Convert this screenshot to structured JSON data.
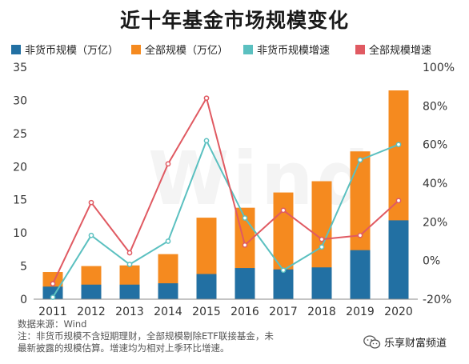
{
  "title": "近十年基金市场规模变化",
  "watermark": "Wind",
  "legend": [
    {
      "label": "非货币规模（万亿）",
      "color": "#2270a3"
    },
    {
      "label": "全部规模（万亿）",
      "color": "#f58a1f"
    },
    {
      "label": "非货币规模增速",
      "color": "#5bc0c0"
    },
    {
      "label": "全部规模增速",
      "color": "#e05a62"
    }
  ],
  "chart_data": {
    "type": "bar",
    "categories": [
      "2011",
      "2012",
      "2013",
      "2014",
      "2015",
      "2016",
      "2017",
      "2018",
      "2019",
      "2020"
    ],
    "series": [
      {
        "name": "非货币规模（万亿）",
        "kind": "bar",
        "axis": "left",
        "color": "#2270a3",
        "values": [
          1.9,
          2.2,
          2.2,
          2.4,
          3.8,
          4.7,
          4.5,
          4.8,
          7.4,
          11.9
        ]
      },
      {
        "name": "全部规模（万亿）",
        "kind": "bar",
        "axis": "left",
        "color": "#f58a1f",
        "values": [
          4.1,
          5.0,
          5.1,
          6.8,
          12.3,
          13.8,
          16.1,
          17.8,
          22.3,
          31.5
        ]
      },
      {
        "name": "非货币规模增速",
        "kind": "line",
        "axis": "right",
        "color": "#5bc0c0",
        "values": [
          -19,
          13,
          -2,
          10,
          62,
          22,
          -5,
          7,
          52,
          60
        ]
      },
      {
        "name": "全部规模增速",
        "kind": "line",
        "axis": "right",
        "color": "#e05a62",
        "values": [
          -12,
          30,
          4,
          50,
          84,
          8,
          26,
          11,
          13,
          31
        ]
      }
    ],
    "y_left": {
      "min": 0,
      "max": 35,
      "ticks": [
        "0",
        "5",
        "10",
        "15",
        "20",
        "25",
        "30",
        "35"
      ]
    },
    "y_right": {
      "min": -20,
      "max": 100,
      "ticks": [
        "-20%",
        "0%",
        "20%",
        "40%",
        "60%",
        "80%",
        "100%"
      ]
    },
    "grid": false,
    "legend_position": "top"
  },
  "notes": {
    "source": "数据来源：Wind",
    "line1": "注：非货币规模不含短期理财，全部规模剔除ETF联接基金，未",
    "line2": "最新披露的规模估算。增速均为相对上季环比增速。"
  },
  "badge": {
    "text": "乐享财富频道",
    "icon": "wechat-icon"
  }
}
